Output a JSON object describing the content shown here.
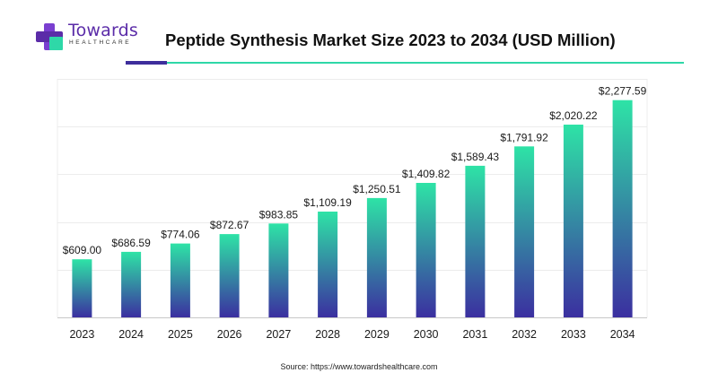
{
  "brand": {
    "name": "Towards",
    "sub": "HEALTHCARE",
    "colors": {
      "purple": "#5b2ca8",
      "teal": "#2ed8a8"
    },
    "logo_icon": "medical-cross-icon"
  },
  "header": {
    "title": "Peptide Synthesis Market Size 2023 to 2034 (USD Million)"
  },
  "source": "Source: https://www.towardshealthcare.com",
  "chart_data": {
    "type": "bar",
    "title": "Peptide Synthesis Market Size 2023 to 2034 (USD Million)",
    "xlabel": "",
    "ylabel": "",
    "categories": [
      "2023",
      "2024",
      "2025",
      "2026",
      "2027",
      "2028",
      "2029",
      "2030",
      "2031",
      "2032",
      "2033",
      "2034"
    ],
    "values": [
      609.0,
      686.59,
      774.06,
      872.67,
      983.85,
      1109.19,
      1250.51,
      1409.82,
      1589.43,
      1791.92,
      2020.22,
      2277.59
    ],
    "data_labels": [
      "$609.00",
      "$686.59",
      "$774.06",
      "$872.67",
      "$983.85",
      "$1,109.19",
      "$1,250.51",
      "$1,409.82",
      "$1,589.43",
      "$1,791.92",
      "$2,020.22",
      "$2,277.59"
    ],
    "ylim": [
      0,
      2500
    ],
    "grid": true,
    "legend": "none",
    "colors": {
      "bar_top": "#2ee3a6",
      "bar_bottom": "#3b2fa0",
      "grid": "#ececec",
      "axis": "#c8c8c8"
    }
  }
}
